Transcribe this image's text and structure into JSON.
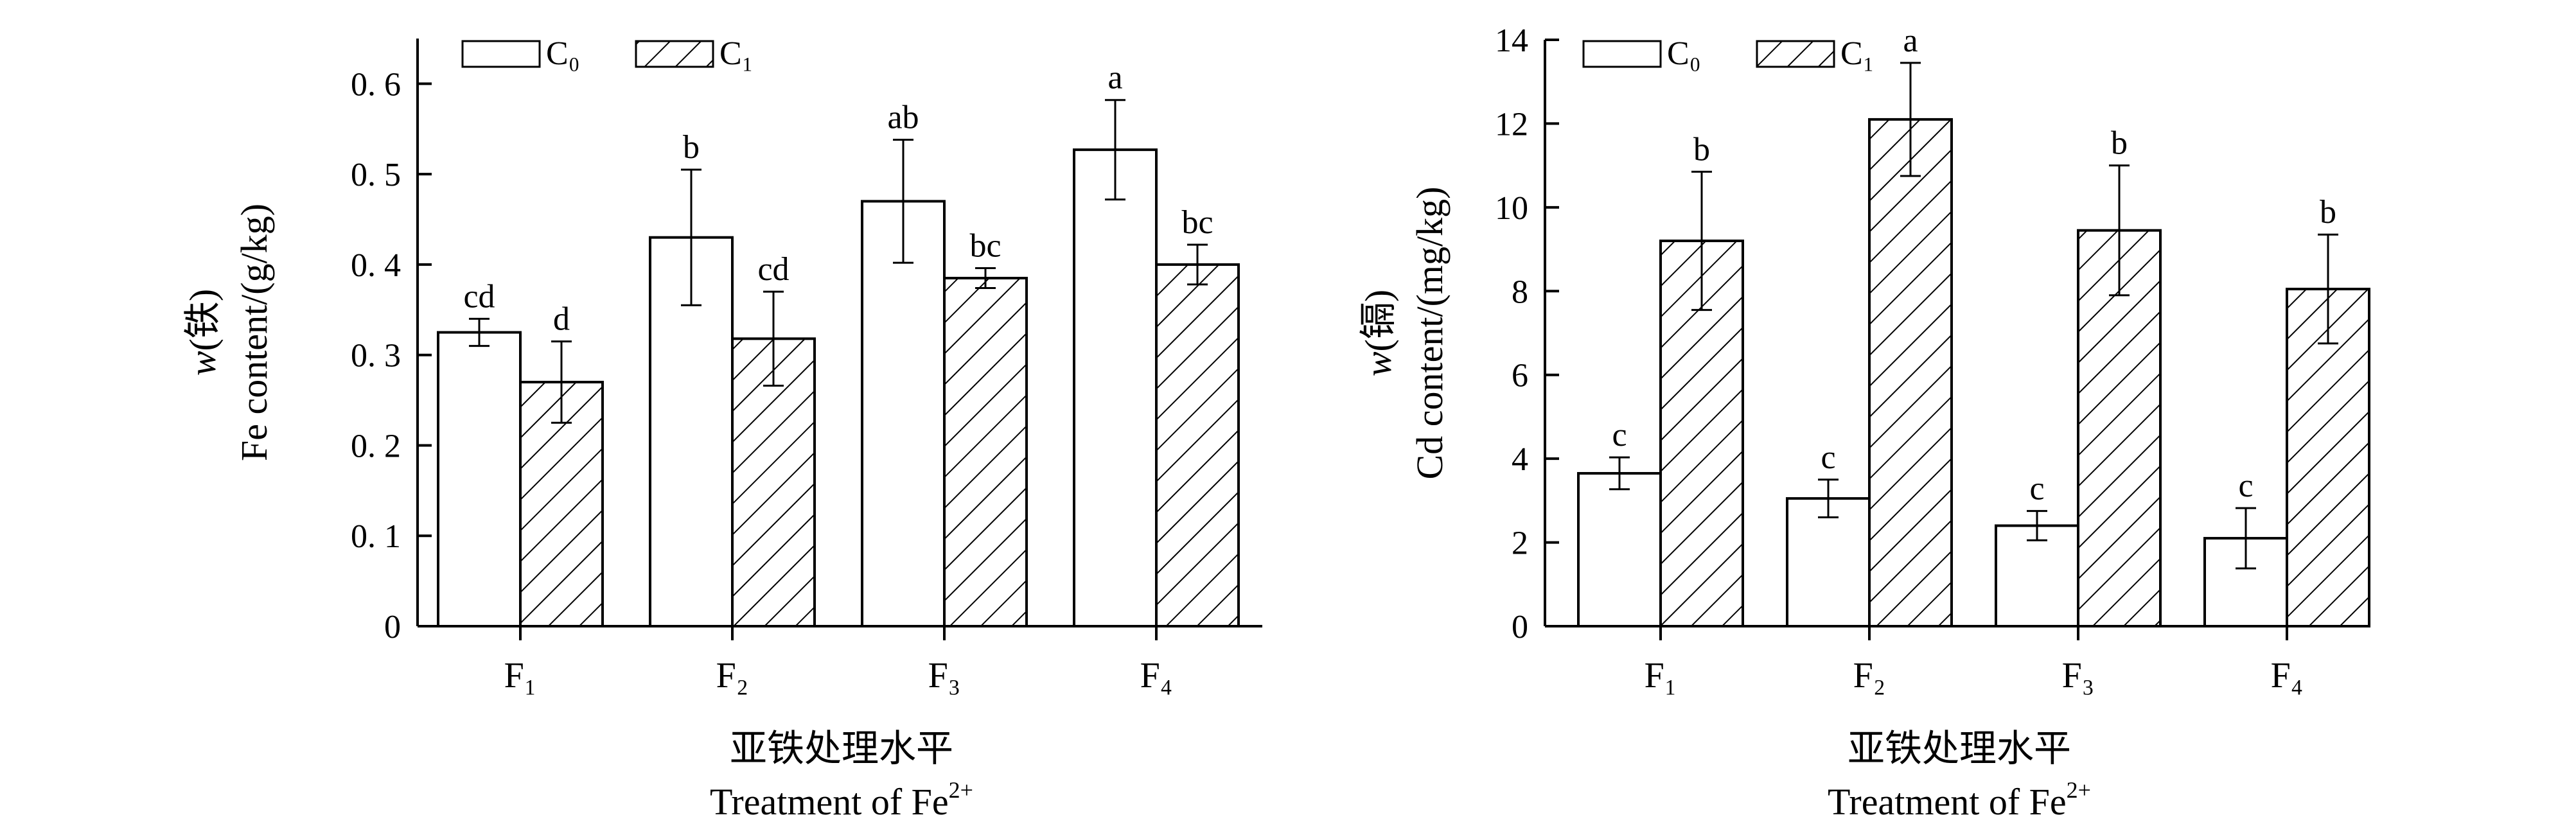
{
  "chart_data": [
    {
      "type": "bar",
      "categories": [
        "F1",
        "F2",
        "F3",
        "F4"
      ],
      "ylabel": "Fe content/(g/kg)",
      "ylabel_cn": "w(铁)",
      "xlabel_cn": "亚铁处理水平",
      "xlabel": "Treatment of Fe2+",
      "ylim": [
        0,
        0.65
      ],
      "yticks": [
        0,
        0.1,
        0.2,
        0.3,
        0.4,
        0.5,
        0.6
      ],
      "ytick_labels": [
        "0",
        "0. 1",
        "0. 2",
        "0. 3",
        "0. 4",
        "0. 5",
        "0. 6"
      ],
      "legend_position": "top-left",
      "series": [
        {
          "name": "C0",
          "pattern": "open",
          "values": [
            0.325,
            0.43,
            0.47,
            0.527
          ],
          "errors": [
            0.015,
            0.075,
            0.068,
            0.055
          ],
          "letters": [
            "cd",
            "b",
            "ab",
            "a"
          ]
        },
        {
          "name": "C1",
          "pattern": "hatched",
          "values": [
            0.27,
            0.318,
            0.385,
            0.4
          ],
          "errors": [
            0.045,
            0.052,
            0.011,
            0.022
          ],
          "letters": [
            "d",
            "cd",
            "bc",
            "bc"
          ]
        }
      ]
    },
    {
      "type": "bar",
      "categories": [
        "F1",
        "F2",
        "F3",
        "F4"
      ],
      "ylabel": "Cd content/(mg/kg)",
      "ylabel_cn": "w(镉)",
      "xlabel_cn": "亚铁处理水平",
      "xlabel": "Treatment of Fe2+",
      "ylim": [
        0,
        14
      ],
      "yticks": [
        0,
        2,
        4,
        6,
        8,
        10,
        12,
        14
      ],
      "ytick_labels": [
        "0",
        "2",
        "4",
        "6",
        "8",
        "10",
        "12",
        "14"
      ],
      "legend_position": "top-left",
      "series": [
        {
          "name": "C0",
          "pattern": "open",
          "values": [
            3.65,
            3.05,
            2.4,
            2.1
          ],
          "errors": [
            0.38,
            0.45,
            0.35,
            0.72
          ],
          "letters": [
            "c",
            "c",
            "c",
            "c"
          ]
        },
        {
          "name": "C1",
          "pattern": "hatched",
          "values": [
            9.2,
            12.1,
            9.45,
            8.05
          ],
          "errors": [
            1.65,
            1.35,
            1.55,
            1.3
          ],
          "letters": [
            "b",
            "a",
            "b",
            "b"
          ]
        }
      ]
    }
  ]
}
